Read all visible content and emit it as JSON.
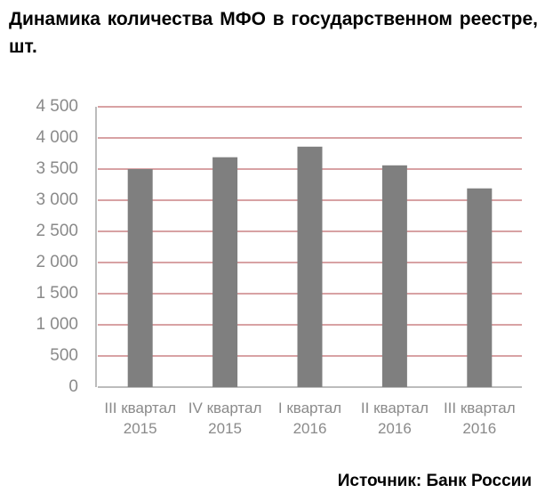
{
  "chart_data": {
    "type": "bar",
    "title": "Динамика количества МФО в государственном реестре, шт.",
    "source": "Источник: Банк России",
    "categories": [
      "III квартал 2015",
      "IV квартал 2015",
      "I квартал 2016",
      "II квартал 2016",
      "III квартал 2016"
    ],
    "values": [
      3500,
      3690,
      3860,
      3560,
      3190
    ],
    "color": "#7f7f7f",
    "ylim": [
      0,
      4500
    ],
    "yticks": [
      0,
      500,
      {
        "value": 1000,
        "label": "1 000"
      },
      {
        "value": 1500,
        "label": "1 500"
      },
      {
        "value": 2000,
        "label": "2 000"
      },
      {
        "value": 2500,
        "label": "2 500"
      },
      {
        "value": 3000,
        "label": "3 000"
      },
      {
        "value": 3500,
        "label": "3 500"
      },
      {
        "value": 4000,
        "label": "4 000"
      },
      {
        "value": 4500,
        "label": "4 500"
      }
    ],
    "grid": true
  }
}
